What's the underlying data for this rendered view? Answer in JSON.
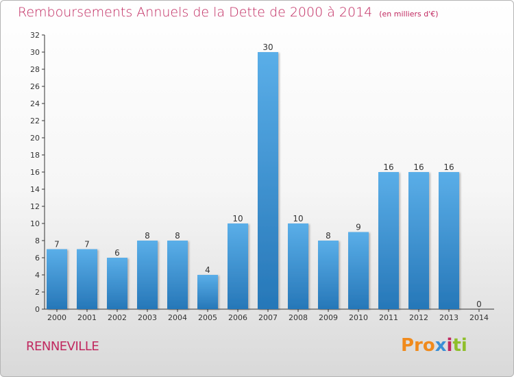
{
  "chart_data": {
    "type": "bar",
    "title": "Remboursements Annuels de la Dette de 2000 à 2014",
    "subtitle": "(en milliers d'€)",
    "categories": [
      "2000",
      "2001",
      "2002",
      "2003",
      "2004",
      "2005",
      "2006",
      "2007",
      "2008",
      "2009",
      "2010",
      "2011",
      "2012",
      "2013",
      "2014"
    ],
    "values": [
      7,
      7,
      6,
      8,
      8,
      4,
      10,
      30,
      10,
      8,
      9,
      16,
      16,
      16,
      0
    ],
    "ylim": [
      0,
      32
    ],
    "yticks": [
      0,
      2,
      4,
      6,
      8,
      10,
      12,
      14,
      16,
      18,
      20,
      22,
      24,
      26,
      28,
      30,
      32
    ],
    "grid": false,
    "data_labels": true,
    "colors": {
      "bar_light": "#5aaee8",
      "bar_dark": "#2677b8",
      "title": "#c0285f"
    }
  },
  "footer": {
    "town": "RENNEVILLE",
    "logo": {
      "part1": "Pro",
      "part2": "x",
      "part3": "i",
      "part4": "ti"
    }
  }
}
